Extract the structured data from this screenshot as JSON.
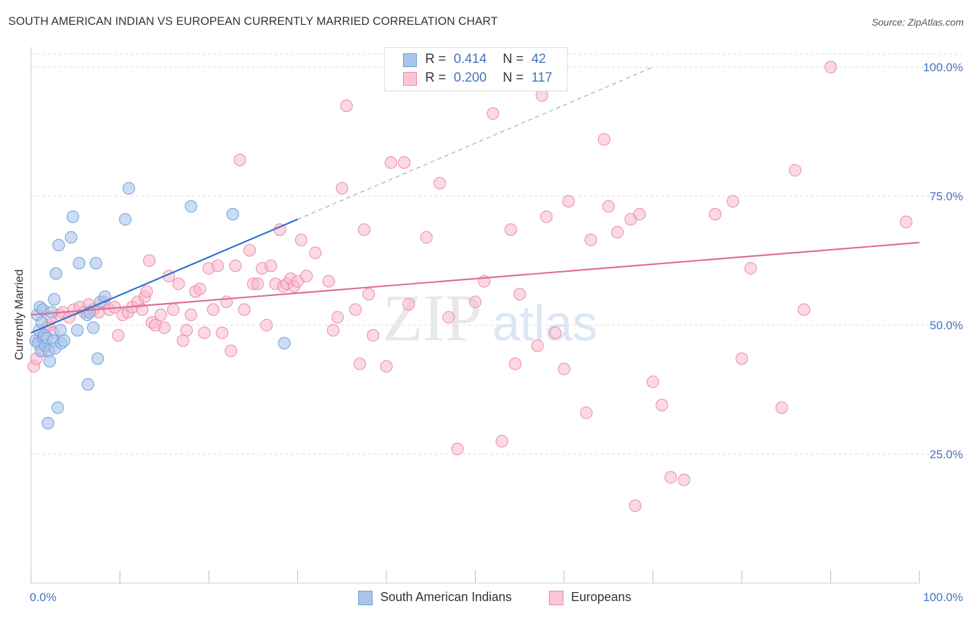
{
  "header": {
    "title": "SOUTH AMERICAN INDIAN VS EUROPEAN CURRENTLY MARRIED CORRELATION CHART",
    "source": "Source: ZipAtlas.com"
  },
  "legend": {
    "rows": [
      {
        "r_label": "R =",
        "r_value": "0.414",
        "n_label": "N =",
        "n_value": "42"
      },
      {
        "r_label": "R =",
        "r_value": "0.200",
        "n_label": "N =",
        "n_value": "117"
      }
    ]
  },
  "bottom_legend": {
    "items": [
      {
        "label": "South American Indians"
      },
      {
        "label": "Europeans"
      }
    ]
  },
  "colors": {
    "blue_fill": "#a9c4eb",
    "blue_stroke": "#6f9fd8",
    "blue_line": "#2f6fcf",
    "pink_fill": "#f7b8cb",
    "pink_stroke": "#e98aaa",
    "pink_line": "#e06c96",
    "tick": "#4472c4",
    "grid": "#dddddd"
  },
  "watermark": {
    "zip": "ZIP",
    "atlas": "atlas"
  },
  "chart_data": {
    "type": "scatter",
    "title": "SOUTH AMERICAN INDIAN VS EUROPEAN CURRENTLY MARRIED CORRELATION CHART",
    "ylabel": "Currently Married",
    "xlabel": "",
    "xlim": [
      0,
      100
    ],
    "ylim": [
      0,
      100
    ],
    "x_ticks": [
      "0.0%",
      "100.0%"
    ],
    "y_ticks": [
      "25.0%",
      "50.0%",
      "75.0%",
      "100.0%"
    ],
    "grid": "horizontal dashed",
    "legend_placement": "top-center",
    "series": [
      {
        "name": "South American Indians",
        "R": 0.414,
        "N": 42,
        "trend": {
          "x0": 0,
          "y0": 48.5,
          "x1": 30,
          "y1": 70.5,
          "dashed_to": [
            70,
            100
          ]
        },
        "points": [
          [
            0.5,
            47.0
          ],
          [
            0.7,
            52.0
          ],
          [
            0.8,
            46.5
          ],
          [
            0.9,
            49.0
          ],
          [
            1.0,
            53.5
          ],
          [
            1.1,
            45.0
          ],
          [
            1.2,
            50.5
          ],
          [
            1.3,
            53.0
          ],
          [
            1.4,
            47.5
          ],
          [
            1.5,
            48.0
          ],
          [
            1.6,
            46.0
          ],
          [
            1.8,
            47.5
          ],
          [
            1.9,
            31.0
          ],
          [
            2.0,
            45.0
          ],
          [
            2.1,
            43.0
          ],
          [
            2.3,
            52.5
          ],
          [
            2.5,
            47.0
          ],
          [
            2.6,
            55.0
          ],
          [
            2.7,
            45.5
          ],
          [
            2.8,
            60.0
          ],
          [
            3.0,
            34.0
          ],
          [
            3.1,
            65.5
          ],
          [
            3.3,
            49.0
          ],
          [
            3.4,
            46.5
          ],
          [
            3.7,
            47.0
          ],
          [
            4.7,
            71.0
          ],
          [
            5.2,
            49.0
          ],
          [
            5.4,
            62.0
          ],
          [
            6.3,
            52.0
          ],
          [
            6.4,
            38.5
          ],
          [
            6.6,
            52.5
          ],
          [
            7.0,
            49.5
          ],
          [
            7.3,
            62.0
          ],
          [
            7.5,
            43.5
          ],
          [
            7.8,
            54.5
          ],
          [
            8.3,
            55.5
          ],
          [
            10.6,
            70.5
          ],
          [
            11.0,
            76.5
          ],
          [
            18.0,
            73.0
          ],
          [
            22.7,
            71.5
          ],
          [
            28.5,
            46.5
          ],
          [
            4.5,
            67.0
          ]
        ]
      },
      {
        "name": "Europeans",
        "R": 0.2,
        "N": 117,
        "trend": {
          "x0": 0,
          "y0": 52.0,
          "x1": 100,
          "y1": 66.0
        },
        "points": [
          [
            0.3,
            42.0
          ],
          [
            0.6,
            43.5
          ],
          [
            1.0,
            47.5
          ],
          [
            1.3,
            45.0
          ],
          [
            1.6,
            46.0
          ],
          [
            1.8,
            49.5
          ],
          [
            2.0,
            50.0
          ],
          [
            2.2,
            51.5
          ],
          [
            2.5,
            48.5
          ],
          [
            3.2,
            52.0
          ],
          [
            3.6,
            52.5
          ],
          [
            4.3,
            51.5
          ],
          [
            4.8,
            53.0
          ],
          [
            5.5,
            53.5
          ],
          [
            6.0,
            52.5
          ],
          [
            6.5,
            54.0
          ],
          [
            7.0,
            53.0
          ],
          [
            7.6,
            52.5
          ],
          [
            8.2,
            54.5
          ],
          [
            8.8,
            53.0
          ],
          [
            9.4,
            53.5
          ],
          [
            9.8,
            48.0
          ],
          [
            10.3,
            52.0
          ],
          [
            10.9,
            52.5
          ],
          [
            11.4,
            53.5
          ],
          [
            12.0,
            54.5
          ],
          [
            12.5,
            53.0
          ],
          [
            12.8,
            55.5
          ],
          [
            13.0,
            56.5
          ],
          [
            13.3,
            62.5
          ],
          [
            13.6,
            50.5
          ],
          [
            14.0,
            50.0
          ],
          [
            14.6,
            52.0
          ],
          [
            15.0,
            49.5
          ],
          [
            15.5,
            59.5
          ],
          [
            16.0,
            53.0
          ],
          [
            16.6,
            58.0
          ],
          [
            17.1,
            47.0
          ],
          [
            17.5,
            49.0
          ],
          [
            18.0,
            52.0
          ],
          [
            18.5,
            56.5
          ],
          [
            19.0,
            57.0
          ],
          [
            19.5,
            48.5
          ],
          [
            20.0,
            61.0
          ],
          [
            20.5,
            53.0
          ],
          [
            21.0,
            61.5
          ],
          [
            21.5,
            48.5
          ],
          [
            22.0,
            54.5
          ],
          [
            22.5,
            45.0
          ],
          [
            23.0,
            61.5
          ],
          [
            23.5,
            82.0
          ],
          [
            24.0,
            53.0
          ],
          [
            24.6,
            64.5
          ],
          [
            25.0,
            58.0
          ],
          [
            25.5,
            58.0
          ],
          [
            26.0,
            61.0
          ],
          [
            26.5,
            50.0
          ],
          [
            27.0,
            61.5
          ],
          [
            27.5,
            58.0
          ],
          [
            28.0,
            68.5
          ],
          [
            28.4,
            57.5
          ],
          [
            28.8,
            58.0
          ],
          [
            29.2,
            59.0
          ],
          [
            29.6,
            57.5
          ],
          [
            30.0,
            58.5
          ],
          [
            30.4,
            66.5
          ],
          [
            31.0,
            59.5
          ],
          [
            32.0,
            64.0
          ],
          [
            33.5,
            58.5
          ],
          [
            34.0,
            49.0
          ],
          [
            34.5,
            51.5
          ],
          [
            35.0,
            76.5
          ],
          [
            35.5,
            92.5
          ],
          [
            36.5,
            53.0
          ],
          [
            37.0,
            42.5
          ],
          [
            37.5,
            68.5
          ],
          [
            38.0,
            56.0
          ],
          [
            38.5,
            48.0
          ],
          [
            40.0,
            42.0
          ],
          [
            40.5,
            81.5
          ],
          [
            42.0,
            81.5
          ],
          [
            42.5,
            54.0
          ],
          [
            44.5,
            67.0
          ],
          [
            46.0,
            77.5
          ],
          [
            47.0,
            51.5
          ],
          [
            48.0,
            26.0
          ],
          [
            50.0,
            54.5
          ],
          [
            51.0,
            58.5
          ],
          [
            52.0,
            91.0
          ],
          [
            53.0,
            27.5
          ],
          [
            54.0,
            68.5
          ],
          [
            54.5,
            42.5
          ],
          [
            55.0,
            56.0
          ],
          [
            57.0,
            46.0
          ],
          [
            57.5,
            94.5
          ],
          [
            58.0,
            71.0
          ],
          [
            59.0,
            48.5
          ],
          [
            60.0,
            41.5
          ],
          [
            60.5,
            74.0
          ],
          [
            62.5,
            33.0
          ],
          [
            63.0,
            66.5
          ],
          [
            64.5,
            86.0
          ],
          [
            65.0,
            73.0
          ],
          [
            66.0,
            68.0
          ],
          [
            67.5,
            70.5
          ],
          [
            68.0,
            15.0
          ],
          [
            68.5,
            71.5
          ],
          [
            70.0,
            39.0
          ],
          [
            71.0,
            34.5
          ],
          [
            72.0,
            20.5
          ],
          [
            73.5,
            20.0
          ],
          [
            77.0,
            71.5
          ],
          [
            79.0,
            74.0
          ],
          [
            80.0,
            43.5
          ],
          [
            81.0,
            61.0
          ],
          [
            84.5,
            34.0
          ],
          [
            86.0,
            80.0
          ],
          [
            87.0,
            53.0
          ],
          [
            90.0,
            100.0
          ],
          [
            98.5,
            70.0
          ]
        ]
      }
    ]
  }
}
